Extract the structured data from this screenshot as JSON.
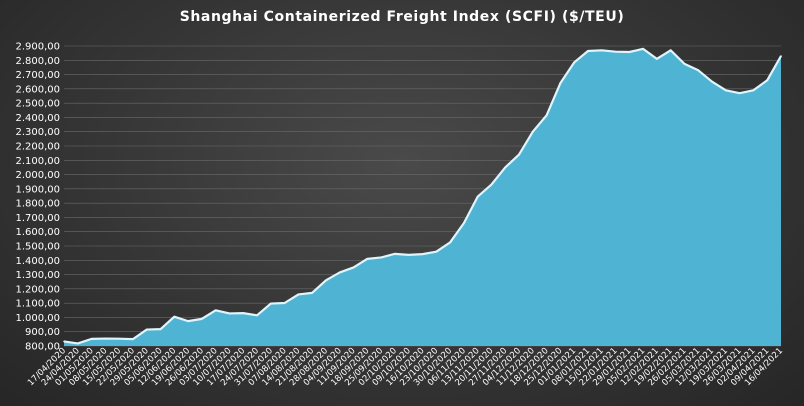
{
  "chart_data": {
    "type": "area",
    "title": "Shanghai Containerized Freight Index  (SCFI) ($/TEU)",
    "xlabel": "",
    "ylabel": "",
    "ylim": [
      800,
      2900
    ],
    "ytick_step": 100,
    "y_tick_labels": [
      "800,00",
      "900,00",
      "1.000,00",
      "1.100,00",
      "1.200,00",
      "1.300,00",
      "1.400,00",
      "1.500,00",
      "1.600,00",
      "1.700,00",
      "1.800,00",
      "1.900,00",
      "2.000,00",
      "2.100,00",
      "2.200,00",
      "2.300,00",
      "2.400,00",
      "2.500,00",
      "2.600,00",
      "2.700,00",
      "2.800,00",
      "2.900,00"
    ],
    "grid": true,
    "legend": "none",
    "colors": {
      "fill": "#4fb3d3",
      "line": "#dff4fb",
      "text": "#ffffff",
      "grid": "#6a6a6a"
    },
    "x": [
      "17/04/2020",
      "24/04/2020",
      "01/05/2020",
      "08/05/2020",
      "15/05/2020",
      "22/05/2020",
      "29/05/2020",
      "05/06/2020",
      "12/06/2020",
      "19/06/2020",
      "26/06/2020",
      "03/07/2020",
      "10/07/2020",
      "17/07/2020",
      "24/07/2020",
      "31/07/2020",
      "07/08/2020",
      "14/08/2020",
      "21/08/2020",
      "28/08/2020",
      "04/09/2020",
      "11/09/2020",
      "18/09/2020",
      "25/09/2020",
      "02/10/2020",
      "09/10/2020",
      "16/10/2020",
      "23/10/2020",
      "30/10/2020",
      "06/11/2020",
      "13/11/2020",
      "20/11/2020",
      "27/11/2020",
      "04/12/2020",
      "11/12/2020",
      "18/12/2020",
      "25/12/2020",
      "01/01/2021",
      "08/01/2021",
      "15/01/2021",
      "22/01/2021",
      "29/01/2021",
      "05/02/2021",
      "12/02/2021",
      "19/02/2021",
      "26/02/2021",
      "05/03/2021",
      "12/03/2021",
      "19/03/2021",
      "26/03/2021",
      "02/04/2021",
      "09/04/2021",
      "16/04/2021"
    ],
    "x_tick_labels": [
      "17/04/2020",
      "24/04/2020",
      "01/05/2020",
      "08/05/2020",
      "15/05/2020",
      "22/05/2020",
      "29/05/2020",
      "05/06/2020",
      "12/06/2020",
      "19/06/2020",
      "26/06/2020",
      "03/07/2020",
      "10/07/2020",
      "17/07/2020",
      "24/07/2020",
      "31/07/2020",
      "07/08/2020",
      "14/08/2020",
      "21/08/2020",
      "28/08/2020",
      "04/09/2020",
      "11/09/2020",
      "18/09/2020",
      "25/09/2020",
      "02/10/2020",
      "09/10/2020",
      "16/10/2020",
      "23/10/2020",
      "30/10/2020",
      "06/11/2020",
      "13/11/2020",
      "20/11/2020",
      "27/11/2020",
      "04/12/2020",
      "11/12/2020",
      "18/12/2020",
      "25/12/2020",
      "01/01/2021",
      "08/01/2021",
      "15/01/2021",
      "22/01/2021",
      "29/01/2021",
      "05/02/2021",
      "12/02/2021",
      "19/02/2021",
      "26/02/2021",
      "05/03/2021",
      "12/03/2021",
      "19/03/2021",
      "26/03/2021",
      "02/04/2021",
      "09/04/2021",
      "16/04/2021"
    ],
    "series": [
      {
        "values": [
          832,
          818,
          850,
          852,
          851,
          848,
          915,
          918,
          1005,
          974,
          990,
          1050,
          1028,
          1030,
          1015,
          1097,
          1101,
          1161,
          1172,
          1260,
          1315,
          1350,
          1410,
          1420,
          1445,
          1438,
          1443,
          1460,
          1525,
          1660,
          1845,
          1930,
          2050,
          2140,
          2300,
          2415,
          2640,
          2785,
          2865,
          2870,
          2860,
          2858,
          2880,
          2810,
          2870,
          2775,
          2730,
          2650,
          2590,
          2570,
          2590,
          2660,
          2830
        ]
      }
    ]
  }
}
